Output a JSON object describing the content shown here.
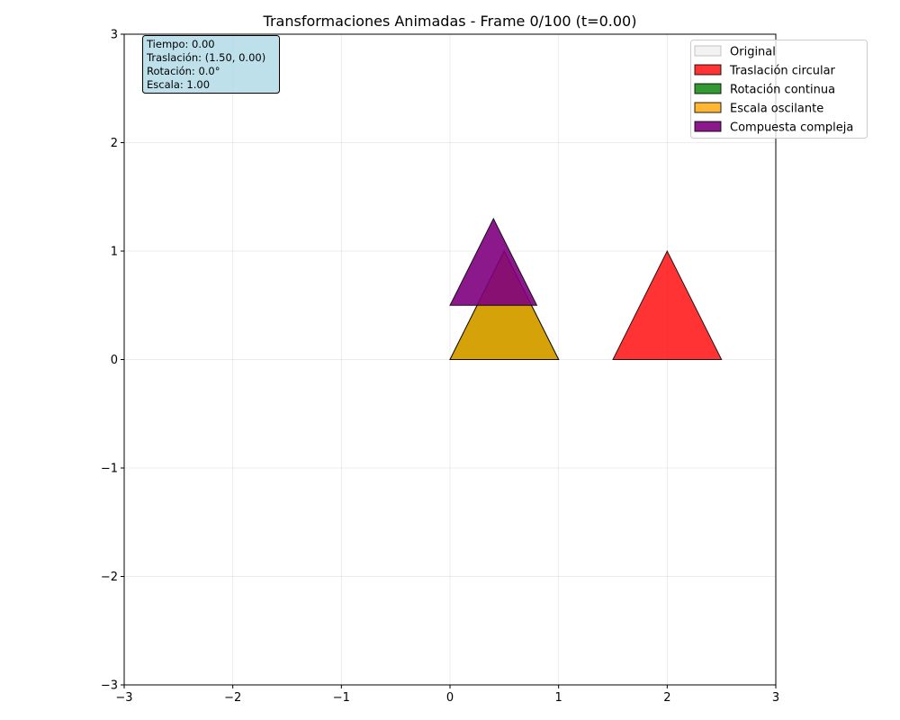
{
  "chart_data": {
    "type": "scatter",
    "title": "Transformaciones Animadas - Frame 0/100 (t=0.00)",
    "xlim": [
      -3,
      3
    ],
    "ylim": [
      -3,
      3
    ],
    "xticks": [
      -3,
      -2,
      -1,
      0,
      1,
      2,
      3
    ],
    "yticks": [
      -3,
      -2,
      -1,
      0,
      1,
      2,
      3
    ],
    "xtick_labels": [
      "−3",
      "−2",
      "−1",
      "0",
      "1",
      "2",
      "3"
    ],
    "ytick_labels": [
      "−3",
      "−2",
      "−1",
      "0",
      "1",
      "2",
      "3"
    ],
    "grid": true,
    "legend_placement": "top-right",
    "info_box": {
      "lines": [
        "Tiempo: 0.00",
        "Traslación: (1.50, 0.00)",
        "Rotación: 0.0°",
        "Escala: 1.00"
      ],
      "background": "#add8e6"
    },
    "series": [
      {
        "name": "Original",
        "color": "#d3d3d3",
        "fill_opacity": 0.3,
        "vertices": [
          [
            0,
            0
          ],
          [
            1,
            0
          ],
          [
            0.5,
            1
          ]
        ]
      },
      {
        "name": "Traslación circular",
        "color": "#ff0000",
        "fill_opacity": 0.8,
        "vertices": [
          [
            1.5,
            0
          ],
          [
            2.5,
            0
          ],
          [
            2,
            1
          ]
        ]
      },
      {
        "name": "Rotación continua",
        "color": "#008000",
        "fill_opacity": 0.8,
        "vertices": [
          [
            0,
            0
          ],
          [
            1,
            0
          ],
          [
            0.5,
            1
          ]
        ]
      },
      {
        "name": "Escala oscilante",
        "color": "#ffa500",
        "fill_opacity": 0.8,
        "vertices": [
          [
            0,
            0
          ],
          [
            1,
            0
          ],
          [
            0.5,
            1
          ]
        ]
      },
      {
        "name": "Compuesta compleja",
        "color": "#800080",
        "fill_opacity": 0.9,
        "vertices": [
          [
            0,
            0.5
          ],
          [
            0.8,
            0.5
          ],
          [
            0.4,
            1.3
          ]
        ]
      }
    ]
  }
}
